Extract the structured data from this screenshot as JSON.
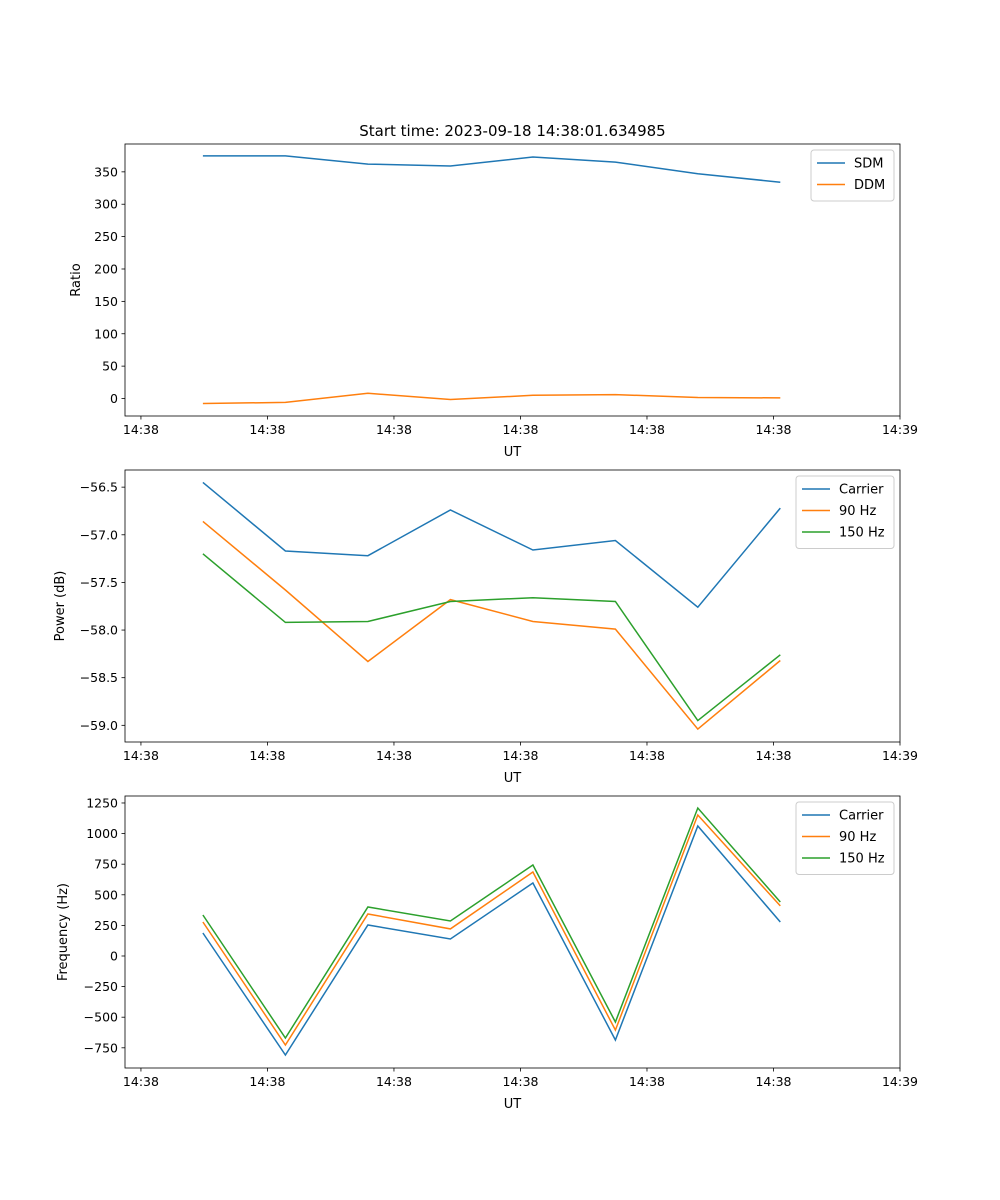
{
  "title": "Start time: 2023-09-18 14:38:01.634985",
  "colors": {
    "c0": "#1f77b4",
    "c1": "#ff7f0e",
    "c2": "#2ca02c"
  },
  "chart_data": [
    {
      "type": "line",
      "title": "Start time: 2023-09-18 14:38:01.634985",
      "xlabel": "UT",
      "ylabel": "Ratio",
      "xlim": [
        -0.126,
        6.0
      ],
      "xticks": [
        0,
        1,
        2,
        3,
        4,
        5,
        6
      ],
      "xtick_labels": [
        "14:38",
        "14:38",
        "14:38",
        "14:38",
        "14:38",
        "14:38",
        "14:39"
      ],
      "ylim": [
        -27,
        393
      ],
      "yticks": [
        0,
        50,
        100,
        150,
        200,
        250,
        300,
        350
      ],
      "ytick_labels": [
        "0",
        "50",
        "100",
        "150",
        "200",
        "250",
        "300",
        "350"
      ],
      "legend": "top-right",
      "x": [
        0.49,
        1.142,
        1.794,
        2.446,
        3.098,
        3.75,
        4.402,
        5.054
      ],
      "series": [
        {
          "name": "SDM",
          "color": "#1f77b4",
          "values": [
            374.6,
            374.6,
            362,
            359,
            373,
            365,
            347,
            334
          ]
        },
        {
          "name": "DDM",
          "color": "#ff7f0e",
          "values": [
            -7.7,
            -6,
            8,
            -1.5,
            5,
            6,
            1.5,
            1
          ]
        }
      ]
    },
    {
      "type": "line",
      "xlabel": "UT",
      "ylabel": "Power (dB)",
      "xlim": [
        -0.126,
        6.0
      ],
      "xticks": [
        0,
        1,
        2,
        3,
        4,
        5,
        6
      ],
      "xtick_labels": [
        "14:38",
        "14:38",
        "14:38",
        "14:38",
        "14:38",
        "14:38",
        "14:39"
      ],
      "ylim": [
        -59.175,
        -56.32
      ],
      "yticks": [
        -59.0,
        -58.5,
        -58.0,
        -57.5,
        -57.0,
        -56.5
      ],
      "ytick_labels": [
        "−59.0",
        "−58.5",
        "−58.0",
        "−57.5",
        "−57.0",
        "−56.5"
      ],
      "legend": "top-right",
      "x": [
        0.49,
        1.142,
        1.794,
        2.446,
        3.098,
        3.75,
        4.402,
        5.054
      ],
      "series": [
        {
          "name": "Carrier",
          "color": "#1f77b4",
          "values": [
            -56.45,
            -57.17,
            -57.22,
            -56.74,
            -57.16,
            -57.06,
            -57.76,
            -56.72
          ]
        },
        {
          "name": "90 Hz",
          "color": "#ff7f0e",
          "values": [
            -56.86,
            -57.58,
            -58.33,
            -57.68,
            -57.91,
            -57.99,
            -59.04,
            -58.32
          ]
        },
        {
          "name": "150 Hz",
          "color": "#2ca02c",
          "values": [
            -57.2,
            -57.92,
            -57.91,
            -57.7,
            -57.66,
            -57.7,
            -58.95,
            -58.26
          ]
        }
      ]
    },
    {
      "type": "line",
      "xlabel": "UT",
      "ylabel": "Frequency (Hz)",
      "xlim": [
        -0.126,
        6.0
      ],
      "xticks": [
        0,
        1,
        2,
        3,
        4,
        5,
        6
      ],
      "xtick_labels": [
        "14:38",
        "14:38",
        "14:38",
        "14:38",
        "14:38",
        "14:38",
        "14:39"
      ],
      "ylim": [
        -915,
        1307
      ],
      "yticks": [
        -750,
        -500,
        -250,
        0,
        250,
        500,
        750,
        1000,
        1250
      ],
      "ytick_labels": [
        "−750",
        "−500",
        "−250",
        "0",
        "250",
        "500",
        "750",
        "1000",
        "1250"
      ],
      "legend": "top-right",
      "x": [
        0.49,
        1.142,
        1.794,
        2.446,
        3.098,
        3.75,
        4.402,
        5.054
      ],
      "series": [
        {
          "name": "Carrier",
          "color": "#1f77b4",
          "values": [
            188,
            -809,
            253,
            139,
            596,
            -686,
            1062,
            278
          ]
        },
        {
          "name": "90 Hz",
          "color": "#ff7f0e",
          "values": [
            278,
            -727,
            343,
            221,
            686,
            -605,
            1152,
            409
          ]
        },
        {
          "name": "150 Hz",
          "color": "#2ca02c",
          "values": [
            335,
            -670,
            400,
            286,
            743,
            -539,
            1209,
            441
          ]
        }
      ]
    }
  ]
}
